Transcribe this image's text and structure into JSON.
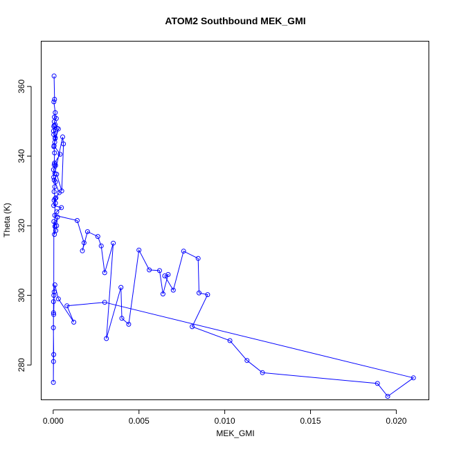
{
  "chart_data": {
    "type": "line",
    "title": "ATOM2 Southbound MEK_GMI",
    "xlabel": "MEK_GMI",
    "ylabel": "Theta (K)",
    "xlim": [
      -0.0007,
      0.0219
    ],
    "ylim": [
      270,
      373
    ],
    "xticks": [
      0.0,
      0.005,
      0.01,
      0.015,
      0.02
    ],
    "xtick_labels": [
      "0.000",
      "0.005",
      "0.010",
      "0.015",
      "0.020"
    ],
    "yticks": [
      280,
      300,
      320,
      340,
      360
    ],
    "ytick_labels": [
      "280",
      "300",
      "320",
      "340",
      "360"
    ],
    "grid": false,
    "legend": "none",
    "series": [
      {
        "color": "#0000ff",
        "marker": "open-circle",
        "x": [
          5e-05,
          8e-05,
          4e-05,
          0.00012,
          7e-05,
          0.00018,
          6e-05,
          0.00012,
          0.00022,
          4e-05,
          0.00015,
          3e-05,
          0.00011,
          0.0003,
          9e-05,
          5e-05,
          0.0004,
          8e-05,
          0.00014,
          2e-05,
          0.0001,
          0.00055,
          0.0006,
          0.0005,
          0.0002,
          6e-05,
          0.00035,
          0.00016,
          5e-05,
          0.00013,
          3e-05,
          0.00048,
          0.00021,
          9e-05,
          0.0014,
          0.0018,
          0.0017,
          0.002,
          0.0026,
          0.0028,
          0.003,
          0.0035,
          0.0031,
          0.00395,
          0.004,
          0.0044,
          0.005,
          0.0056,
          0.0062,
          0.0064,
          0.0067,
          0.0065,
          0.007,
          0.0076,
          0.00845,
          0.0085,
          0.009,
          0.0081,
          0.0103,
          0.0113,
          0.0122,
          0.0189,
          0.0195,
          0.021,
          0.003,
          0.0008,
          0.0012,
          0.0003,
          0.0001,
          4e-05,
          2e-05,
          1e-05,
          3e-05,
          2e-05,
          1e-05,
          2e-05,
          6e-05,
          3e-05,
          4e-05,
          0.0001,
          0.00025,
          0.0002,
          0.00015,
          7e-05,
          0.00011,
          5e-05,
          9e-05,
          0.00013,
          3e-05,
          6e-05,
          8e-05,
          4e-05,
          0.00012,
          2e-05,
          6e-05
        ],
        "y": [
          363.0,
          356.3,
          355.6,
          352.5,
          351.2,
          350.8,
          349.9,
          349.0,
          348.0,
          348.5,
          347.5,
          346.2,
          345.0,
          347.8,
          344.0,
          343.0,
          340.5,
          338.0,
          337.3,
          336.1,
          335.0,
          345.5,
          343.5,
          330.0,
          334.8,
          333.1,
          329.5,
          328.0,
          327.3,
          326.5,
          325.8,
          325.2,
          324.0,
          323.0,
          321.5,
          315.1,
          312.8,
          318.3,
          316.9,
          314.2,
          306.5,
          315.0,
          287.6,
          302.3,
          293.4,
          291.7,
          313.0,
          307.3,
          307.1,
          300.4,
          306.0,
          305.6,
          301.5,
          312.7,
          310.6,
          300.7,
          300.2,
          291.0,
          287.0,
          281.3,
          277.8,
          274.7,
          271.0,
          276.3,
          298.0,
          297.0,
          292.3,
          299.0,
          303.0,
          300.0,
          295.0,
          290.7,
          283.0,
          281.0,
          275.0,
          298.2,
          301.0,
          294.5,
          321.2,
          319.8,
          322.5,
          320.0,
          318.6,
          317.5,
          327.8,
          329.8,
          331.2,
          332.6,
          333.9,
          337.5,
          340.9,
          342.7,
          345.3,
          347.2,
          348.8
        ]
      }
    ]
  }
}
